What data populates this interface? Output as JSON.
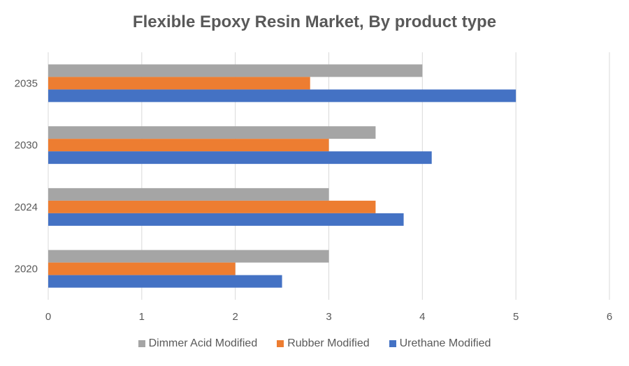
{
  "chart_data": {
    "type": "bar",
    "orientation": "horizontal",
    "title": "Flexible Epoxy Resin Market, By product type",
    "xlabel": "",
    "ylabel": "",
    "categories": [
      "2020",
      "2024",
      "2030",
      "2035"
    ],
    "xlim": [
      0,
      6
    ],
    "xticks": [
      "0",
      "1",
      "2",
      "3",
      "4",
      "5",
      "6"
    ],
    "grid": true,
    "legend_position": "bottom",
    "series": [
      {
        "name": "Dimmer Acid Modified",
        "color": "#a5a5a5",
        "values": [
          3.0,
          3.0,
          3.5,
          4.0
        ]
      },
      {
        "name": "Rubber Modified",
        "color": "#ed7d31",
        "values": [
          2.0,
          3.5,
          3.0,
          2.8
        ]
      },
      {
        "name": "Urethane Modified",
        "color": "#4472c4",
        "values": [
          2.5,
          3.8,
          4.1,
          5.0
        ]
      }
    ]
  }
}
